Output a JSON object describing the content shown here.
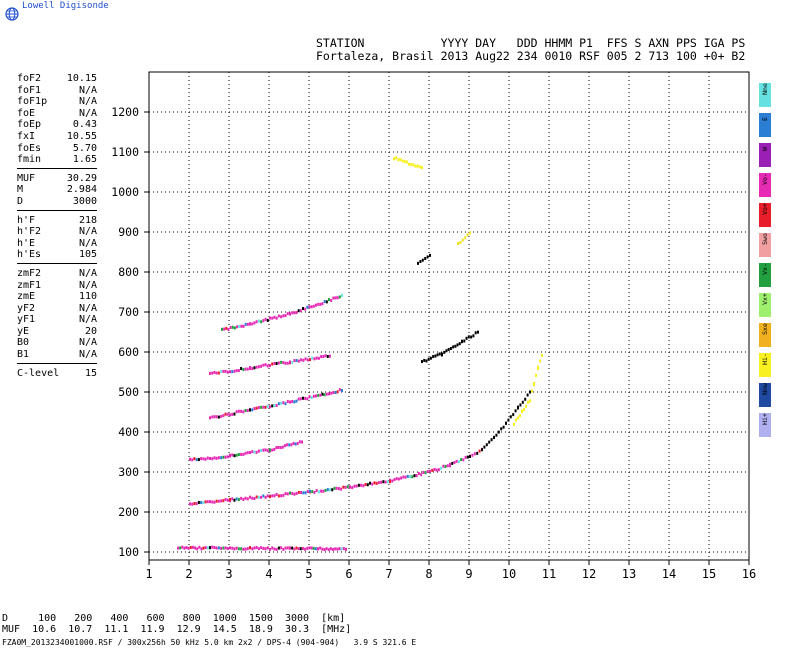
{
  "brand": "Lowell Digisonde",
  "header": {
    "line1": "STATION           YYYY DAY   DDD HHMM P1  FFS S AXN PPS IGA PS",
    "line2": "Fortaleza, Brasil 2013 Aug22 234 0010 RSF 005 2 713 100 +0+ B2"
  },
  "params": [
    {
      "label": "foF2",
      "value": "10.15"
    },
    {
      "label": "foF1",
      "value": "N/A"
    },
    {
      "label": "foF1p",
      "value": "N/A"
    },
    {
      "label": "foE",
      "value": "N/A"
    },
    {
      "label": "foEp",
      "value": "0.43"
    },
    {
      "label": "fxI",
      "value": "10.55"
    },
    {
      "label": "foEs",
      "value": "5.70"
    },
    {
      "label": "fmin",
      "value": "1.65"
    },
    {
      "sep": true
    },
    {
      "label": "MUF",
      "value": "30.29"
    },
    {
      "label": "M",
      "value": "2.984"
    },
    {
      "label": "D",
      "value": "3000"
    },
    {
      "sep": true
    },
    {
      "label": "h'F",
      "value": "218"
    },
    {
      "label": "h'F2",
      "value": "N/A"
    },
    {
      "label": "h'E",
      "value": "N/A"
    },
    {
      "label": "h'Es",
      "value": "105"
    },
    {
      "sep": true
    },
    {
      "label": "zmF2",
      "value": "N/A"
    },
    {
      "label": "zmF1",
      "value": "N/A"
    },
    {
      "label": "zmE",
      "value": "110"
    },
    {
      "label": "yF2",
      "value": "N/A"
    },
    {
      "label": "yF1",
      "value": "N/A"
    },
    {
      "label": "yE",
      "value": "20"
    },
    {
      "label": "B0",
      "value": "N/A"
    },
    {
      "label": "B1",
      "value": "N/A"
    },
    {
      "sep": true
    },
    {
      "label": "C-level",
      "value": "15"
    }
  ],
  "legend": [
    {
      "label": "Nne",
      "color": "#66e0e0"
    },
    {
      "label": "E",
      "color": "#2a7fd4"
    },
    {
      "label": "W",
      "color": "#9a1fb4"
    },
    {
      "label": "Vo-",
      "color": "#e62bb4"
    },
    {
      "label": "Vo+",
      "color": "#e81f2a"
    },
    {
      "label": "Swo",
      "color": "#f0a0a0"
    },
    {
      "label": "Vx-",
      "color": "#22a040"
    },
    {
      "label": "Vx+",
      "color": "#a0f070"
    },
    {
      "label": "Sxe",
      "color": "#f0b020"
    },
    {
      "label": "Hi-",
      "color": "#f8f020"
    },
    {
      "label": "Nnw",
      "color": "#1f4aa0"
    },
    {
      "label": "Hi+",
      "color": "#b0b0f0"
    }
  ],
  "muf_table": {
    "d_line": "D     100   200   400   600   800  1000  1500  3000  [km]",
    "muf_line": "MUF  10.6  10.7  11.1  11.9  12.9  14.5  18.9  30.3  [MHz]"
  },
  "footer": "FZA0M_2013234001000.RSF / 300x256h 50 kHz 5.0 km 2x2 / DPS-4 (904-904)   3.9 S 321.6 E",
  "chart_data": {
    "type": "scatter",
    "xlim": [
      1,
      16
    ],
    "ylim": [
      80,
      1300
    ],
    "xticks": [
      1,
      2,
      3,
      4,
      5,
      6,
      7,
      8,
      9,
      10,
      11,
      12,
      13,
      14,
      15,
      16
    ],
    "yticks": [
      100,
      200,
      300,
      400,
      500,
      600,
      700,
      800,
      900,
      1000,
      1100,
      1200
    ],
    "grid": true,
    "series": [
      {
        "trace": "Es",
        "points": [
          [
            1.7,
            110
          ],
          [
            2.5,
            110
          ],
          [
            3.5,
            109
          ],
          [
            4.5,
            108
          ],
          [
            5.2,
            108
          ],
          [
            5.9,
            108
          ]
        ],
        "color": "#e62bb4"
      },
      {
        "trace": "F-1hop",
        "points": [
          [
            2.0,
            220
          ],
          [
            3.0,
            230
          ],
          [
            4.0,
            240
          ],
          [
            5.0,
            250
          ],
          [
            6.0,
            262
          ],
          [
            7.0,
            278
          ],
          [
            8.0,
            300
          ],
          [
            8.5,
            318
          ],
          [
            9.0,
            340
          ],
          [
            9.3,
            355
          ]
        ],
        "color": "#e62bb4"
      },
      {
        "trace": "F-1hop-x",
        "points": [
          [
            9.3,
            355
          ],
          [
            9.6,
            385
          ],
          [
            9.9,
            420
          ],
          [
            10.2,
            460
          ],
          [
            10.5,
            500
          ]
        ],
        "color": "#000000"
      },
      {
        "trace": "Es-2hop",
        "points": [
          [
            2.0,
            330
          ],
          [
            3.0,
            340
          ],
          [
            4.0,
            355
          ],
          [
            4.8,
            375
          ]
        ],
        "color": "#e62bb4"
      },
      {
        "trace": "Es-3hop",
        "points": [
          [
            2.5,
            435
          ],
          [
            3.5,
            455
          ],
          [
            4.5,
            475
          ],
          [
            5.8,
            505
          ]
        ],
        "color": "#e62bb4"
      },
      {
        "trace": "Es-4hop",
        "points": [
          [
            2.5,
            545
          ],
          [
            3.5,
            560
          ],
          [
            4.5,
            575
          ],
          [
            5.5,
            590
          ]
        ],
        "color": "#e62bb4"
      },
      {
        "trace": "Es-5hop",
        "points": [
          [
            2.8,
            655
          ],
          [
            3.5,
            670
          ],
          [
            4.5,
            695
          ],
          [
            5.8,
            740
          ]
        ],
        "color": "#e62bb4"
      },
      {
        "trace": "F-2hop",
        "points": [
          [
            7.8,
            575
          ],
          [
            8.3,
            595
          ],
          [
            8.8,
            625
          ],
          [
            9.2,
            650
          ]
        ],
        "color": "#000000"
      },
      {
        "trace": "F-3hop",
        "points": [
          [
            7.7,
            820
          ],
          [
            8.0,
            840
          ]
        ],
        "color": "#000000"
      },
      {
        "trace": "F-3hop-o",
        "points": [
          [
            8.7,
            870
          ],
          [
            9.0,
            900
          ]
        ],
        "color": "#f0e020"
      },
      {
        "trace": "spread",
        "points": [
          [
            10.1,
            420
          ],
          [
            10.3,
            450
          ],
          [
            10.5,
            480
          ],
          [
            10.6,
            520
          ],
          [
            10.7,
            560
          ],
          [
            10.8,
            590
          ]
        ],
        "color": "#f8f020"
      },
      {
        "trace": "high",
        "points": [
          [
            7.1,
            1085
          ],
          [
            7.8,
            1060
          ]
        ],
        "color": "#f8f020"
      }
    ]
  }
}
